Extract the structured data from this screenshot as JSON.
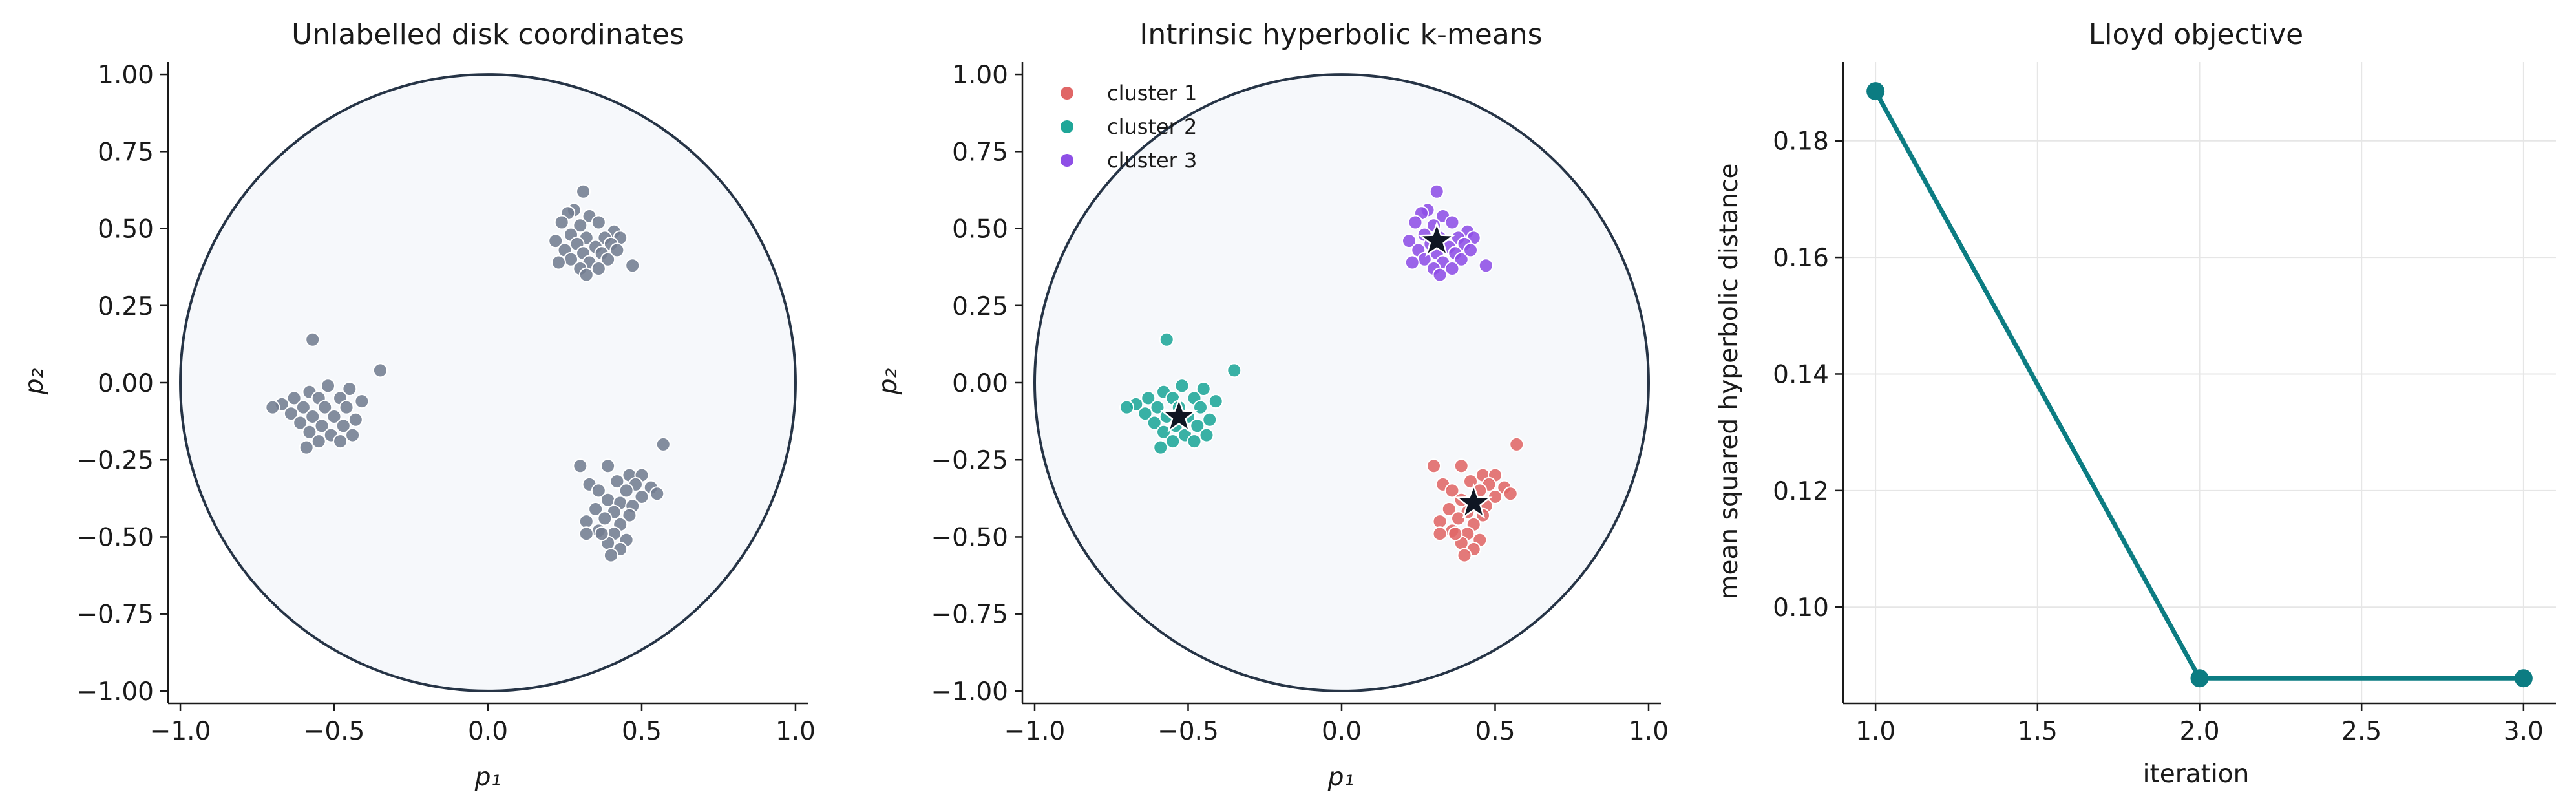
{
  "colors": {
    "gray_points": "#737d91",
    "cluster_1": "#e06666",
    "cluster_2": "#1fa698",
    "cluster_3": "#8e4fe6",
    "centroid": "#0f1623",
    "disk_stroke": "#263446",
    "disk_fill": "#f6f8fb",
    "objective_line": "#0c7c82",
    "axis": "#1a1a1a"
  },
  "chart_data": [
    {
      "type": "scatter",
      "title": "Unlabelled disk coordinates",
      "xlabel": "p₁",
      "ylabel": "p₂",
      "xlim": [
        -1.04,
        1.04
      ],
      "ylim": [
        -1.04,
        1.04
      ],
      "xticks": [
        "−1.0",
        "−0.5",
        "0.0",
        "0.5",
        "1.0"
      ],
      "yticks": [
        "−1.00",
        "−0.75",
        "−0.50",
        "−0.25",
        "0.00",
        "0.25",
        "0.50",
        "0.75",
        "1.00"
      ],
      "grid": false,
      "disk": {
        "center": [
          0,
          0
        ],
        "radius": 1.0
      },
      "series": [
        {
          "color_key": "gray_points",
          "points": [
            [
              0.31,
              0.62
            ],
            [
              0.28,
              0.56
            ],
            [
              0.33,
              0.54
            ],
            [
              0.26,
              0.55
            ],
            [
              0.24,
              0.52
            ],
            [
              0.3,
              0.51
            ],
            [
              0.36,
              0.52
            ],
            [
              0.41,
              0.49
            ],
            [
              0.27,
              0.48
            ],
            [
              0.32,
              0.47
            ],
            [
              0.38,
              0.47
            ],
            [
              0.43,
              0.47
            ],
            [
              0.22,
              0.46
            ],
            [
              0.29,
              0.45
            ],
            [
              0.35,
              0.44
            ],
            [
              0.4,
              0.45
            ],
            [
              0.25,
              0.43
            ],
            [
              0.31,
              0.42
            ],
            [
              0.37,
              0.42
            ],
            [
              0.27,
              0.4
            ],
            [
              0.33,
              0.39
            ],
            [
              0.39,
              0.4
            ],
            [
              0.47,
              0.38
            ],
            [
              0.3,
              0.37
            ],
            [
              0.36,
              0.37
            ],
            [
              0.32,
              0.35
            ],
            [
              0.23,
              0.39
            ],
            [
              0.42,
              0.43
            ],
            [
              -0.57,
              0.14
            ],
            [
              -0.35,
              0.04
            ],
            [
              -0.52,
              -0.01
            ],
            [
              -0.58,
              -0.03
            ],
            [
              -0.45,
              -0.02
            ],
            [
              -0.63,
              -0.05
            ],
            [
              -0.55,
              -0.05
            ],
            [
              -0.48,
              -0.05
            ],
            [
              -0.41,
              -0.06
            ],
            [
              -0.67,
              -0.07
            ],
            [
              -0.6,
              -0.08
            ],
            [
              -0.53,
              -0.08
            ],
            [
              -0.46,
              -0.08
            ],
            [
              -0.7,
              -0.08
            ],
            [
              -0.64,
              -0.1
            ],
            [
              -0.57,
              -0.11
            ],
            [
              -0.5,
              -0.11
            ],
            [
              -0.43,
              -0.12
            ],
            [
              -0.61,
              -0.13
            ],
            [
              -0.54,
              -0.14
            ],
            [
              -0.47,
              -0.14
            ],
            [
              -0.58,
              -0.16
            ],
            [
              -0.51,
              -0.17
            ],
            [
              -0.44,
              -0.17
            ],
            [
              -0.55,
              -0.19
            ],
            [
              -0.48,
              -0.19
            ],
            [
              -0.59,
              -0.21
            ],
            [
              0.57,
              -0.2
            ],
            [
              0.3,
              -0.27
            ],
            [
              0.39,
              -0.27
            ],
            [
              0.46,
              -0.3
            ],
            [
              0.5,
              -0.3
            ],
            [
              0.33,
              -0.33
            ],
            [
              0.42,
              -0.32
            ],
            [
              0.48,
              -0.33
            ],
            [
              0.53,
              -0.34
            ],
            [
              0.36,
              -0.35
            ],
            [
              0.45,
              -0.35
            ],
            [
              0.5,
              -0.37
            ],
            [
              0.55,
              -0.36
            ],
            [
              0.39,
              -0.38
            ],
            [
              0.43,
              -0.39
            ],
            [
              0.47,
              -0.4
            ],
            [
              0.35,
              -0.41
            ],
            [
              0.41,
              -0.42
            ],
            [
              0.46,
              -0.43
            ],
            [
              0.38,
              -0.44
            ],
            [
              0.32,
              -0.45
            ],
            [
              0.43,
              -0.46
            ],
            [
              0.36,
              -0.48
            ],
            [
              0.41,
              -0.49
            ],
            [
              0.32,
              -0.49
            ],
            [
              0.45,
              -0.51
            ],
            [
              0.39,
              -0.52
            ],
            [
              0.43,
              -0.54
            ],
            [
              0.4,
              -0.56
            ],
            [
              0.37,
              -0.49
            ]
          ]
        }
      ]
    },
    {
      "type": "scatter",
      "title": "Intrinsic hyperbolic k-means",
      "xlabel": "p₁",
      "ylabel": "p₂",
      "xlim": [
        -1.04,
        1.04
      ],
      "ylim": [
        -1.04,
        1.04
      ],
      "xticks": [
        "−1.0",
        "−0.5",
        "0.0",
        "0.5",
        "1.0"
      ],
      "yticks": [
        "−1.00",
        "−0.75",
        "−0.50",
        "−0.25",
        "0.00",
        "0.25",
        "0.50",
        "0.75",
        "1.00"
      ],
      "grid": false,
      "legend": "top-left",
      "disk": {
        "center": [
          0,
          0
        ],
        "radius": 1.0
      },
      "series": [
        {
          "name": "cluster 1",
          "color_key": "cluster_1",
          "points": [
            [
              0.57,
              -0.2
            ],
            [
              0.3,
              -0.27
            ],
            [
              0.39,
              -0.27
            ],
            [
              0.46,
              -0.3
            ],
            [
              0.5,
              -0.3
            ],
            [
              0.33,
              -0.33
            ],
            [
              0.42,
              -0.32
            ],
            [
              0.48,
              -0.33
            ],
            [
              0.53,
              -0.34
            ],
            [
              0.36,
              -0.35
            ],
            [
              0.45,
              -0.35
            ],
            [
              0.5,
              -0.37
            ],
            [
              0.55,
              -0.36
            ],
            [
              0.39,
              -0.38
            ],
            [
              0.43,
              -0.39
            ],
            [
              0.47,
              -0.4
            ],
            [
              0.35,
              -0.41
            ],
            [
              0.41,
              -0.42
            ],
            [
              0.46,
              -0.43
            ],
            [
              0.38,
              -0.44
            ],
            [
              0.32,
              -0.45
            ],
            [
              0.43,
              -0.46
            ],
            [
              0.36,
              -0.48
            ],
            [
              0.41,
              -0.49
            ],
            [
              0.32,
              -0.49
            ],
            [
              0.45,
              -0.51
            ],
            [
              0.39,
              -0.52
            ],
            [
              0.43,
              -0.54
            ],
            [
              0.4,
              -0.56
            ],
            [
              0.37,
              -0.49
            ]
          ]
        },
        {
          "name": "cluster 2",
          "color_key": "cluster_2",
          "points": [
            [
              -0.57,
              0.14
            ],
            [
              -0.35,
              0.04
            ],
            [
              -0.52,
              -0.01
            ],
            [
              -0.58,
              -0.03
            ],
            [
              -0.45,
              -0.02
            ],
            [
              -0.63,
              -0.05
            ],
            [
              -0.55,
              -0.05
            ],
            [
              -0.48,
              -0.05
            ],
            [
              -0.41,
              -0.06
            ],
            [
              -0.67,
              -0.07
            ],
            [
              -0.6,
              -0.08
            ],
            [
              -0.53,
              -0.08
            ],
            [
              -0.46,
              -0.08
            ],
            [
              -0.7,
              -0.08
            ],
            [
              -0.64,
              -0.1
            ],
            [
              -0.57,
              -0.11
            ],
            [
              -0.5,
              -0.11
            ],
            [
              -0.43,
              -0.12
            ],
            [
              -0.61,
              -0.13
            ],
            [
              -0.54,
              -0.14
            ],
            [
              -0.47,
              -0.14
            ],
            [
              -0.58,
              -0.16
            ],
            [
              -0.51,
              -0.17
            ],
            [
              -0.44,
              -0.17
            ],
            [
              -0.55,
              -0.19
            ],
            [
              -0.48,
              -0.19
            ],
            [
              -0.59,
              -0.21
            ]
          ]
        },
        {
          "name": "cluster 3",
          "color_key": "cluster_3",
          "points": [
            [
              0.31,
              0.62
            ],
            [
              0.28,
              0.56
            ],
            [
              0.33,
              0.54
            ],
            [
              0.26,
              0.55
            ],
            [
              0.24,
              0.52
            ],
            [
              0.3,
              0.51
            ],
            [
              0.36,
              0.52
            ],
            [
              0.41,
              0.49
            ],
            [
              0.27,
              0.48
            ],
            [
              0.32,
              0.47
            ],
            [
              0.38,
              0.47
            ],
            [
              0.43,
              0.47
            ],
            [
              0.22,
              0.46
            ],
            [
              0.29,
              0.45
            ],
            [
              0.35,
              0.44
            ],
            [
              0.4,
              0.45
            ],
            [
              0.25,
              0.43
            ],
            [
              0.31,
              0.42
            ],
            [
              0.37,
              0.42
            ],
            [
              0.27,
              0.4
            ],
            [
              0.33,
              0.39
            ],
            [
              0.39,
              0.4
            ],
            [
              0.47,
              0.38
            ],
            [
              0.3,
              0.37
            ],
            [
              0.36,
              0.37
            ],
            [
              0.32,
              0.35
            ],
            [
              0.23,
              0.39
            ],
            [
              0.42,
              0.43
            ]
          ]
        }
      ],
      "centroids": [
        [
          0.43,
          -0.39
        ],
        [
          -0.53,
          -0.11
        ],
        [
          0.31,
          0.46
        ]
      ]
    },
    {
      "type": "line",
      "title": "Lloyd objective",
      "xlabel": "iteration",
      "ylabel": "mean squared hyperbolic distance",
      "x": [
        1.0,
        2.0,
        3.0
      ],
      "values": [
        0.1885,
        0.0878,
        0.0878
      ],
      "xlim": [
        0.9,
        3.1
      ],
      "ylim": [
        0.0835,
        0.1935
      ],
      "xticks": [
        1.0,
        1.5,
        2.0,
        2.5,
        3.0
      ],
      "xtick_labels": [
        "1.0",
        "1.5",
        "2.0",
        "2.5",
        "3.0"
      ],
      "yticks": [
        0.1,
        0.12,
        0.14,
        0.16,
        0.18
      ],
      "ytick_labels": [
        "0.10",
        "0.12",
        "0.14",
        "0.16",
        "0.18"
      ],
      "grid": true,
      "color_key": "objective_line"
    }
  ]
}
